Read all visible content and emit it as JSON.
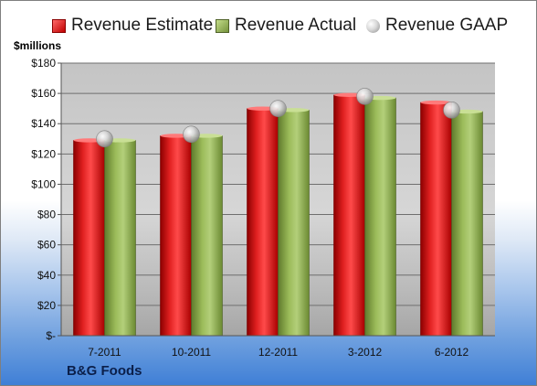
{
  "legend": [
    {
      "label": "Revenue Estimate",
      "swatch": "red"
    },
    {
      "label": "Revenue Actual",
      "swatch": "green"
    },
    {
      "label": "Revenue GAAP",
      "swatch": "gray"
    }
  ],
  "units_label": "$millions",
  "company": "B&G Foods",
  "colors": {
    "estimate": "#c00000",
    "actual": "#76933c",
    "gaap": "#a6a6a6",
    "plot_background": "#d4d4d4"
  },
  "chart_data": {
    "type": "bar",
    "categories": [
      "7-2011",
      "10-2011",
      "12-2011",
      "3-2012",
      "6-2012"
    ],
    "series": [
      {
        "name": "Revenue Estimate",
        "type": "bar",
        "values": [
          129,
          132,
          150,
          159,
          154
        ]
      },
      {
        "name": "Revenue Actual",
        "type": "bar",
        "values": [
          129,
          132,
          149,
          157,
          148
        ]
      },
      {
        "name": "Revenue GAAP",
        "type": "scatter",
        "values": [
          130,
          133,
          150,
          158,
          149
        ]
      }
    ],
    "ylabel": "$millions",
    "ylim": [
      0,
      180
    ],
    "yticks": [
      0,
      20,
      40,
      60,
      80,
      100,
      120,
      140,
      160,
      180
    ],
    "ytick_labels": [
      "$-",
      "$20",
      "$40",
      "$60",
      "$80",
      "$100",
      "$120",
      "$140",
      "$160",
      "$180"
    ],
    "grid": true,
    "legend_position": "top"
  }
}
